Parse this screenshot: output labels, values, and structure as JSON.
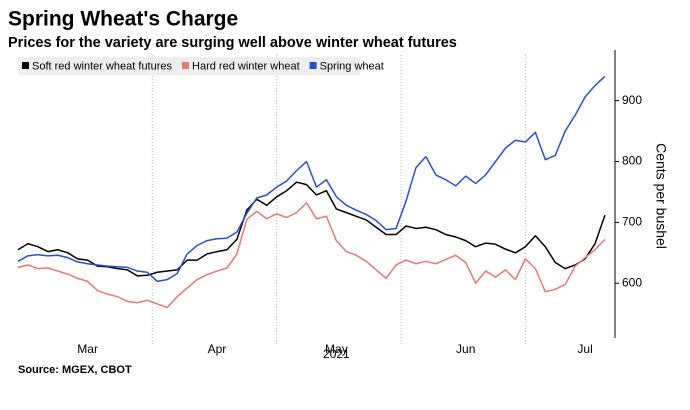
{
  "chart_data": {
    "type": "line",
    "title": "Spring Wheat's Charge",
    "subtitle": "Prices for the variety are surging well above winter wheat futures",
    "source": "Source: MGEX, CBOT",
    "y_axis_label": "Cents per bushel",
    "x_sublabel": "2021",
    "categories": [
      null,
      null,
      null,
      null,
      null,
      null,
      null,
      "Mar",
      null,
      null,
      null,
      null,
      null,
      null,
      null,
      null,
      null,
      null,
      null,
      null,
      "Apr",
      null,
      null,
      null,
      null,
      null,
      null,
      null,
      null,
      null,
      null,
      null,
      "May",
      null,
      null,
      null,
      null,
      null,
      null,
      null,
      null,
      null,
      null,
      null,
      null,
      "Jun",
      null,
      null,
      null,
      null,
      null,
      null,
      null,
      null,
      null,
      null,
      null,
      "Jul",
      null,
      null
    ],
    "series": [
      {
        "name": "Soft red winter wheat futures",
        "color": "#000000",
        "values": [
          655,
          665,
          660,
          652,
          655,
          650,
          640,
          638,
          628,
          627,
          624,
          622,
          612,
          613,
          618,
          620,
          622,
          638,
          638,
          648,
          652,
          655,
          672,
          720,
          738,
          728,
          742,
          752,
          766,
          762,
          745,
          752,
          722,
          716,
          710,
          704,
          692,
          680,
          680,
          694,
          690,
          692,
          688,
          680,
          676,
          670,
          660,
          666,
          664,
          656,
          650,
          660,
          678,
          660,
          634,
          624,
          630,
          640,
          665,
          712
        ]
      },
      {
        "name": "Hard red winter wheat",
        "color": "#e07b72",
        "values": [
          626,
          630,
          624,
          625,
          620,
          615,
          608,
          603,
          588,
          582,
          578,
          570,
          568,
          572,
          566,
          560,
          578,
          592,
          606,
          614,
          620,
          625,
          648,
          705,
          718,
          706,
          714,
          708,
          716,
          732,
          706,
          710,
          670,
          652,
          646,
          636,
          622,
          608,
          630,
          638,
          632,
          636,
          632,
          639,
          646,
          634,
          600,
          620,
          610,
          622,
          606,
          640,
          624,
          586,
          590,
          598,
          628,
          642,
          655,
          672
        ]
      },
      {
        "name": "Spring wheat",
        "color": "#2a52be",
        "values": [
          636,
          645,
          647,
          645,
          646,
          642,
          635,
          632,
          630,
          628,
          627,
          626,
          620,
          618,
          603,
          606,
          616,
          648,
          662,
          670,
          673,
          674,
          684,
          715,
          740,
          745,
          758,
          768,
          785,
          800,
          758,
          770,
          742,
          728,
          720,
          713,
          703,
          688,
          690,
          735,
          790,
          808,
          778,
          770,
          760,
          776,
          764,
          778,
          800,
          822,
          835,
          832,
          848,
          803,
          810,
          850,
          876,
          906,
          925,
          940
        ]
      }
    ],
    "ylim": [
      510,
      975
    ],
    "yticks": [
      600,
      700,
      800,
      900
    ],
    "y_axis_side": "right",
    "grid": false,
    "legend": "top-left"
  }
}
